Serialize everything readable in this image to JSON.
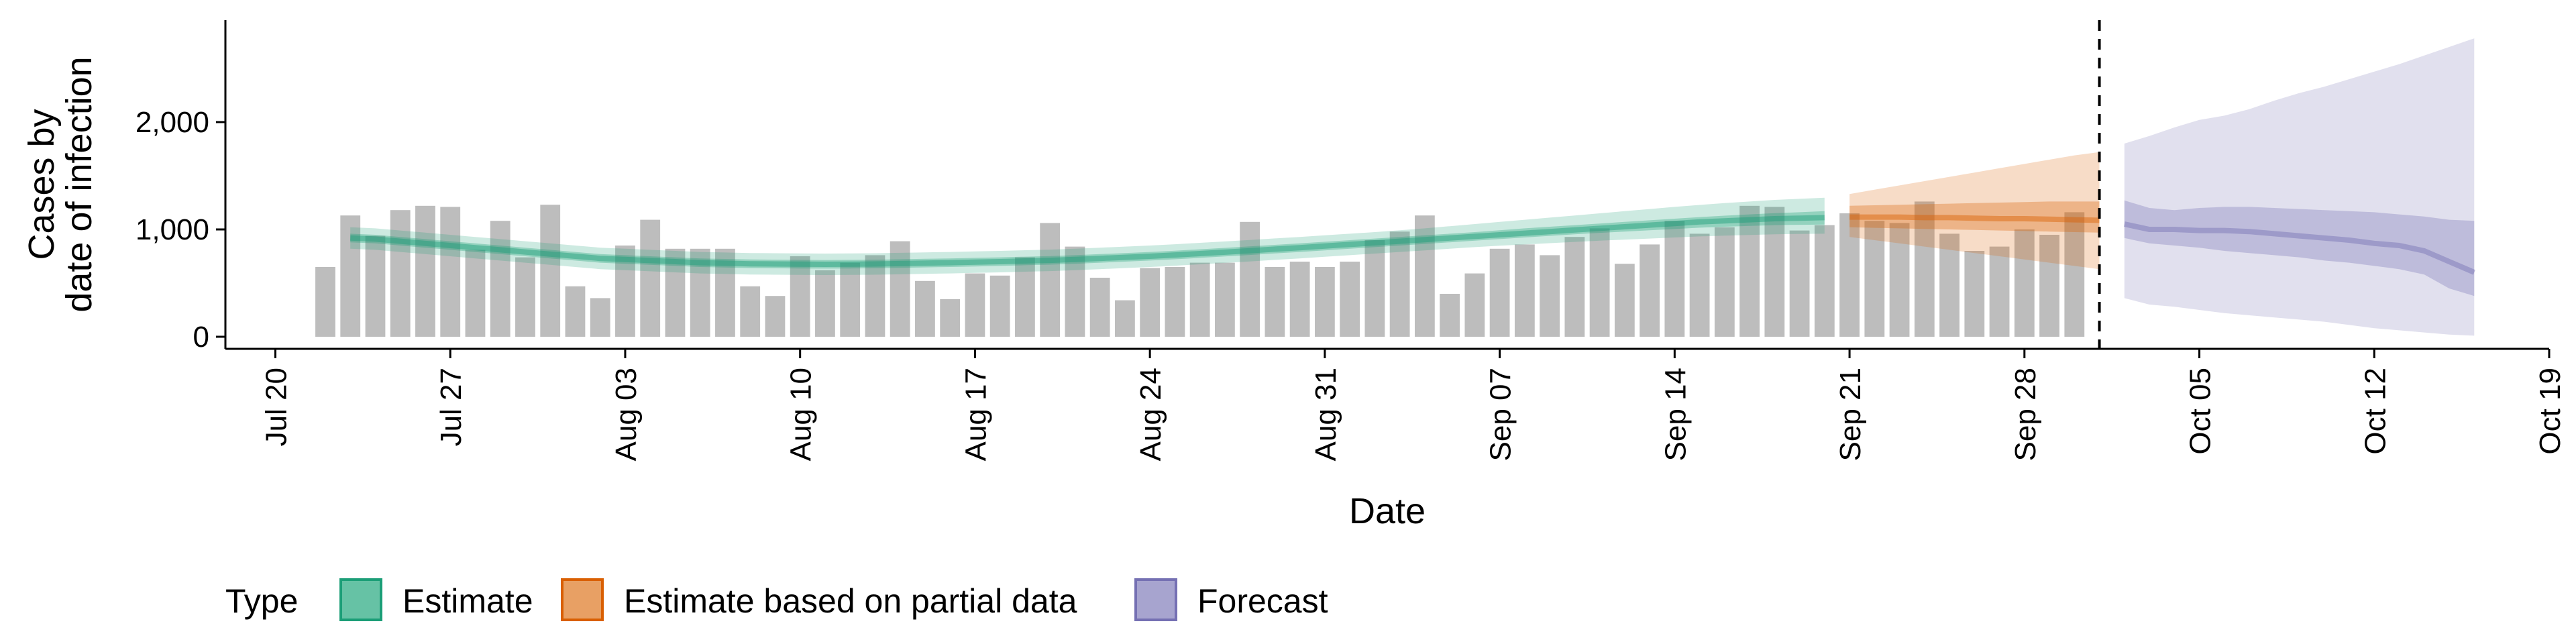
{
  "chart_data": {
    "type": "bar",
    "xlabel": "Date",
    "ylabel_lines": [
      "Cases by",
      "date of infection"
    ],
    "x_tick_labels": [
      "Jul 20",
      "Jul 27",
      "Aug 03",
      "Aug 10",
      "Aug 17",
      "Aug 24",
      "Aug 31",
      "Sep 07",
      "Sep 14",
      "Sep 21",
      "Sep 28",
      "Oct 05",
      "Oct 12",
      "Oct 19"
    ],
    "x_ticks": [
      "2020-07-20",
      "2020-07-27",
      "2020-08-03",
      "2020-08-10",
      "2020-08-17",
      "2020-08-24",
      "2020-08-31",
      "2020-09-07",
      "2020-09-14",
      "2020-09-21",
      "2020-09-28",
      "2020-10-05",
      "2020-10-12",
      "2020-10-19"
    ],
    "y_ticks": [
      0,
      1000,
      2000
    ],
    "y_tick_labels": [
      "0",
      "1,000",
      "2,000"
    ],
    "xlim": [
      "2020-07-18",
      "2020-10-19"
    ],
    "ylim": [
      0,
      2950
    ],
    "cutoff_date": "2020-10-01",
    "grid": false,
    "legend": {
      "title": "Type",
      "position": "bottom",
      "entries": [
        {
          "label": "Estimate",
          "fill": "#66c2a5",
          "stroke": "#1b9e77"
        },
        {
          "label": "Estimate based on partial data",
          "fill": "#e8a064",
          "stroke": "#d95f02"
        },
        {
          "label": "Forecast",
          "fill": "#a7a4cf",
          "stroke": "#7570b3"
        }
      ]
    },
    "bar_color": "#bdbdbd",
    "observed_cases": {
      "start_date": "2020-07-22",
      "values": [
        650,
        1130,
        940,
        1180,
        1220,
        1210,
        810,
        1080,
        740,
        1230,
        470,
        360,
        850,
        1090,
        820,
        820,
        820,
        470,
        380,
        750,
        620,
        690,
        760,
        890,
        520,
        350,
        590,
        570,
        740,
        1060,
        840,
        550,
        340,
        640,
        650,
        690,
        690,
        1070,
        650,
        700,
        650,
        700,
        900,
        980,
        1130,
        400,
        590,
        820,
        860,
        760,
        930,
        1010,
        680,
        860,
        1080,
        960,
        1020,
        1220,
        1210,
        990,
        1040,
        1150,
        1080,
        1060,
        1260,
        960,
        800,
        840,
        1000,
        950,
        1160
      ]
    },
    "series": [
      {
        "name": "Estimate",
        "color": "#1b9e77",
        "start_date": "2020-07-23",
        "median": [
          920,
          910,
          890,
          870,
          850,
          830,
          810,
          790,
          770,
          750,
          730,
          720,
          710,
          700,
          690,
          685,
          680,
          678,
          676,
          675,
          676,
          678,
          682,
          686,
          690,
          695,
          700,
          706,
          712,
          720,
          730,
          740,
          750,
          762,
          775,
          788,
          802,
          816,
          830,
          845,
          860,
          875,
          890,
          905,
          920,
          935,
          950,
          965,
          980,
          995,
          1010,
          1025,
          1040,
          1055,
          1070,
          1080,
          1090,
          1100,
          1105,
          1110
        ],
        "lower_50": [
          880,
          870,
          850,
          830,
          810,
          790,
          770,
          750,
          730,
          710,
          690,
          680,
          670,
          660,
          650,
          645,
          640,
          638,
          636,
          635,
          636,
          638,
          642,
          646,
          650,
          655,
          660,
          666,
          672,
          680,
          690,
          700,
          710,
          722,
          735,
          748,
          762,
          776,
          790,
          805,
          820,
          835,
          850,
          865,
          880,
          895,
          910,
          925,
          940,
          955,
          968,
          980,
          992,
          1004,
          1016,
          1025,
          1033,
          1040,
          1043,
          1045
        ],
        "upper_50": [
          960,
          950,
          930,
          910,
          890,
          870,
          850,
          830,
          810,
          790,
          770,
          760,
          750,
          740,
          730,
          725,
          720,
          718,
          716,
          715,
          716,
          718,
          722,
          726,
          730,
          735,
          740,
          746,
          752,
          760,
          770,
          780,
          790,
          802,
          815,
          828,
          842,
          856,
          870,
          885,
          900,
          915,
          930,
          945,
          960,
          975,
          992,
          1010,
          1025,
          1040,
          1055,
          1070,
          1085,
          1100,
          1115,
          1128,
          1140,
          1152,
          1160,
          1170
        ],
        "lower_90": [
          820,
          810,
          790,
          770,
          750,
          730,
          710,
          690,
          670,
          650,
          630,
          620,
          610,
          600,
          590,
          585,
          580,
          578,
          576,
          575,
          576,
          578,
          582,
          586,
          590,
          595,
          600,
          606,
          612,
          620,
          630,
          640,
          650,
          662,
          675,
          688,
          702,
          716,
          730,
          745,
          760,
          775,
          790,
          805,
          820,
          835,
          848,
          860,
          872,
          884,
          895,
          905,
          915,
          925,
          935,
          942,
          948,
          955,
          958,
          960
        ],
        "upper_90": [
          1020,
          1010,
          990,
          970,
          950,
          930,
          910,
          890,
          870,
          850,
          830,
          820,
          810,
          800,
          790,
          785,
          780,
          778,
          776,
          775,
          776,
          778,
          782,
          786,
          790,
          795,
          800,
          806,
          812,
          820,
          830,
          840,
          850,
          862,
          875,
          888,
          902,
          916,
          930,
          945,
          960,
          975,
          992,
          1010,
          1030,
          1050,
          1070,
          1090,
          1110,
          1130,
          1150,
          1170,
          1190,
          1210,
          1228,
          1245,
          1260,
          1275,
          1285,
          1295
        ]
      },
      {
        "name": "Estimate based on partial data",
        "color": "#d95f02",
        "start_date": "2020-09-21",
        "median": [
          1115,
          1115,
          1115,
          1110,
          1110,
          1105,
          1100,
          1100,
          1095,
          1090,
          1085
        ],
        "lower_50": [
          1020,
          1015,
          1010,
          1005,
          1000,
          995,
          990,
          985,
          980,
          975,
          970
        ],
        "upper_50": [
          1220,
          1225,
          1230,
          1235,
          1240,
          1245,
          1250,
          1255,
          1260,
          1260,
          1260
        ],
        "lower_90": [
          930,
          900,
          870,
          840,
          810,
          780,
          750,
          720,
          690,
          660,
          630
        ],
        "upper_90": [
          1330,
          1370,
          1410,
          1450,
          1490,
          1530,
          1570,
          1610,
          1650,
          1690,
          1720
        ]
      },
      {
        "name": "Forecast",
        "color": "#7570b3",
        "start_date": "2020-10-02",
        "median": [
          1050,
          1000,
          1000,
          990,
          990,
          980,
          960,
          940,
          920,
          900,
          870,
          850,
          800,
          700,
          600
        ],
        "lower_50": [
          920,
          870,
          850,
          830,
          800,
          780,
          760,
          740,
          710,
          690,
          660,
          630,
          580,
          450,
          380
        ],
        "upper_50": [
          1270,
          1200,
          1180,
          1200,
          1210,
          1210,
          1200,
          1190,
          1180,
          1170,
          1160,
          1140,
          1120,
          1090,
          1080
        ],
        "lower_90": [
          360,
          300,
          280,
          250,
          220,
          200,
          180,
          160,
          140,
          110,
          80,
          60,
          40,
          20,
          10
        ],
        "upper_90": [
          1800,
          1870,
          1950,
          2020,
          2060,
          2120,
          2200,
          2270,
          2330,
          2400,
          2470,
          2540,
          2620,
          2700,
          2780
        ]
      }
    ]
  }
}
